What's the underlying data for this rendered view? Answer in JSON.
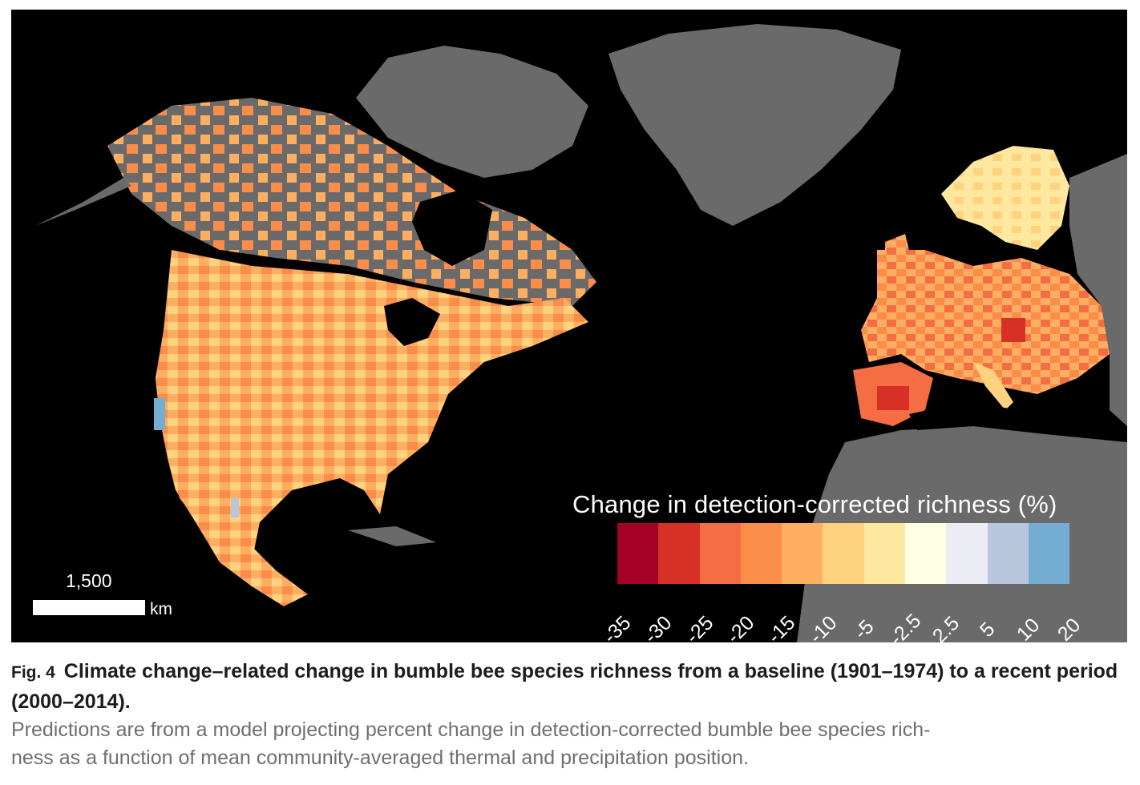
{
  "figure": {
    "legend": {
      "title": "Change in detection-corrected richness (%)",
      "colors": [
        "#a50026",
        "#d73027",
        "#f46d43",
        "#fb8d4a",
        "#fdae61",
        "#fed27e",
        "#fee8a0",
        "#ffffe4",
        "#ececf4",
        "#b8c6de",
        "#74add1"
      ],
      "ticks": [
        "-35",
        "-30",
        "-25",
        "-20",
        "-15",
        "-10",
        "-5",
        "-2.5",
        "2.5",
        "5",
        "10",
        "20"
      ]
    },
    "scale_bar": {
      "value": "1,500",
      "unit": "km"
    },
    "colors": {
      "ocean": "#000000",
      "land_no_data": "#6a6a6a"
    }
  },
  "caption": {
    "fig_label": "Fig. 4",
    "title": "Climate change–related change in bumble bee species richness from a baseline (1901–1974) to a recent period (2000–2014).",
    "body_line1": "Predictions are from a model projecting percent change in detection-corrected bumble bee species rich-",
    "body_line2": "ness as a function of mean community-averaged thermal and precipitation position."
  }
}
